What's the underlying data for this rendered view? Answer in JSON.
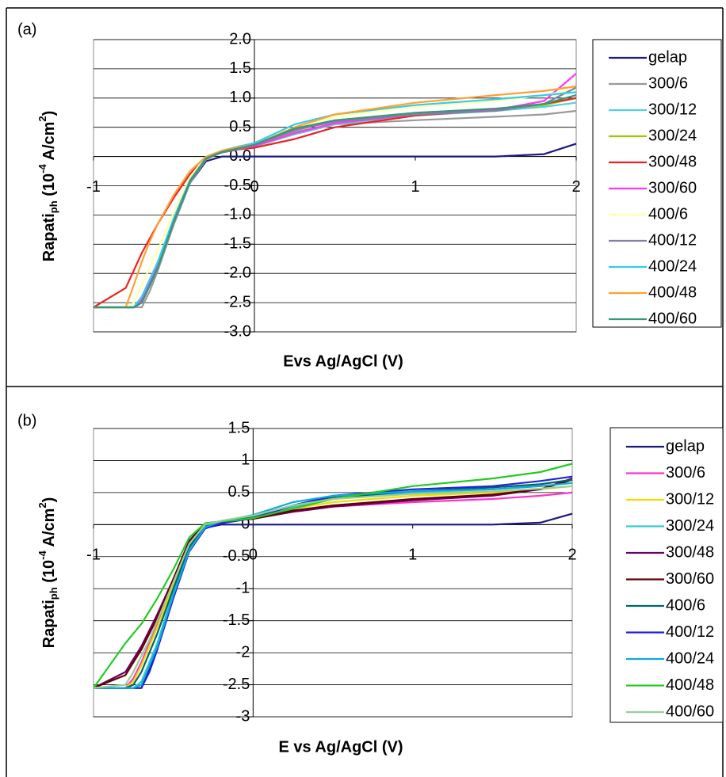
{
  "chart_data": [
    {
      "type": "line",
      "panel": "(a)",
      "xlabel": "Evs Ag/AgCl (V)",
      "ylabel": [
        "Rapati",
        "ph",
        " (10",
        "-4",
        " A/cm",
        "2",
        ")"
      ],
      "xlim": [
        -1,
        2
      ],
      "xticks": [
        -1,
        0,
        1,
        2
      ],
      "ylim": [
        -3,
        2
      ],
      "yticks": [
        {
          "value": -3,
          "label": "-3.0"
        },
        -2.5,
        {
          "value": -2,
          "label": "-2.0"
        },
        -1.5,
        {
          "value": -1,
          "label": "-1.0"
        },
        -0.5,
        {
          "value": 0,
          "label": "0.0"
        },
        0.5,
        {
          "value": 1,
          "label": "1.0"
        },
        1.5,
        {
          "value": 2,
          "label": "2.0"
        }
      ],
      "grid": true,
      "legend": "right",
      "x": [
        -1,
        -0.8,
        -0.75,
        -0.7,
        -0.65,
        -0.6,
        -0.5,
        -0.4,
        -0.3,
        -0.2,
        -0.1,
        0,
        0.25,
        0.5,
        1,
        1.5,
        1.8,
        2
      ],
      "series": [
        {
          "name": "gelap",
          "color": "#1a1a80",
          "values": [
            -2.58,
            -2.58,
            -2.58,
            -2.5,
            -2.2,
            -1.9,
            -1.15,
            -0.45,
            -0.08,
            0,
            0,
            0,
            0,
            0,
            0,
            0,
            0.04,
            0.22
          ]
        },
        {
          "name": "300/6",
          "color": "#999999",
          "values": [
            -2.58,
            -2.58,
            -2.58,
            -2.58,
            -2.3,
            -1.95,
            -1.15,
            -0.45,
            -0.05,
            0.08,
            0.13,
            0.2,
            0.42,
            0.55,
            0.62,
            0.68,
            0.72,
            0.78
          ]
        },
        {
          "name": "300/12",
          "color": "#55d0dd",
          "values": [
            -2.58,
            -2.58,
            -2.58,
            -2.4,
            -2.1,
            -1.8,
            -1.05,
            -0.4,
            -0.03,
            0.07,
            0.12,
            0.17,
            0.38,
            0.55,
            0.7,
            0.78,
            0.85,
            0.92
          ]
        },
        {
          "name": "300/24",
          "color": "#99cc00",
          "values": [
            -2.58,
            -2.58,
            -2.58,
            -2.45,
            -2.15,
            -1.85,
            -1.1,
            -0.42,
            -0.03,
            0.08,
            0.13,
            0.18,
            0.4,
            0.57,
            0.72,
            0.8,
            0.88,
            1.0
          ]
        },
        {
          "name": "300/48",
          "color": "#ee2222",
          "values": [
            -2.58,
            -2.25,
            -1.95,
            -1.65,
            -1.4,
            -1.15,
            -0.7,
            -0.3,
            0,
            0.07,
            0.12,
            0.15,
            0.3,
            0.5,
            0.7,
            0.8,
            0.9,
            1.0
          ]
        },
        {
          "name": "300/60",
          "color": "#ff33ff",
          "values": [
            -2.58,
            -2.58,
            -2.58,
            -2.45,
            -2.15,
            -1.85,
            -1.1,
            -0.42,
            -0.03,
            0.08,
            0.13,
            0.18,
            0.4,
            0.57,
            0.72,
            0.8,
            0.95,
            1.42
          ]
        },
        {
          "name": "400/6",
          "color": "#ffffaa",
          "values": [
            -2.58,
            -2.58,
            -2.5,
            -2.2,
            -1.9,
            -1.6,
            -0.95,
            -0.35,
            0,
            0.1,
            0.17,
            0.22,
            0.5,
            0.68,
            0.85,
            0.95,
            1.05,
            1.15
          ]
        },
        {
          "name": "400/12",
          "color": "#8080a0",
          "values": [
            -2.58,
            -2.58,
            -2.58,
            -2.5,
            -2.2,
            -1.9,
            -1.12,
            -0.43,
            -0.04,
            0.07,
            0.13,
            0.2,
            0.45,
            0.6,
            0.72,
            0.78,
            0.9,
            1.18
          ]
        },
        {
          "name": "400/24",
          "color": "#33ccee",
          "values": [
            -2.58,
            -2.58,
            -2.58,
            -2.4,
            -2.1,
            -1.8,
            -1.05,
            -0.4,
            -0.02,
            0.1,
            0.17,
            0.23,
            0.55,
            0.72,
            0.88,
            0.98,
            1.05,
            1.1
          ]
        },
        {
          "name": "400/48",
          "color": "#ffa030",
          "values": [
            -2.58,
            -2.58,
            -2.2,
            -1.8,
            -1.45,
            -1.15,
            -0.65,
            -0.25,
            0,
            0.1,
            0.16,
            0.2,
            0.5,
            0.72,
            0.92,
            1.05,
            1.12,
            1.2
          ]
        },
        {
          "name": "400/60",
          "color": "#339977",
          "values": [
            -2.58,
            -2.58,
            -2.58,
            -2.5,
            -2.2,
            -1.9,
            -1.1,
            -0.42,
            -0.03,
            0.08,
            0.14,
            0.2,
            0.48,
            0.62,
            0.75,
            0.82,
            0.9,
            1.05
          ]
        }
      ]
    },
    {
      "type": "line",
      "panel": "(b)",
      "xlabel": "E vs Ag/AgCl (V)",
      "ylabel": [
        "Rapati",
        "ph",
        " (10",
        "-4",
        " A/cm",
        "2",
        ")"
      ],
      "xlim": [
        -1,
        2
      ],
      "xticks": [
        -1,
        0,
        1,
        2
      ],
      "ylim": [
        -3,
        1.5
      ],
      "yticks": [
        -3,
        -2.5,
        -2,
        -1.5,
        -1,
        -0.5,
        0,
        0.5,
        1,
        1.5
      ],
      "grid": true,
      "legend": "right",
      "x": [
        -1,
        -0.8,
        -0.75,
        -0.7,
        -0.65,
        -0.6,
        -0.5,
        -0.4,
        -0.3,
        -0.2,
        -0.1,
        0,
        0.25,
        0.5,
        1,
        1.5,
        1.8,
        2
      ],
      "series": [
        {
          "name": "gelap",
          "color": "#1a1a80",
          "values": [
            -2.55,
            -2.55,
            -2.55,
            -2.55,
            -2.25,
            -1.9,
            -1.1,
            -0.4,
            -0.05,
            0,
            0,
            0,
            0,
            0,
            0,
            0,
            0.03,
            0.17
          ]
        },
        {
          "name": "300/6",
          "color": "#ff33cc",
          "values": [
            -2.55,
            -2.55,
            -2.4,
            -2.15,
            -1.85,
            -1.55,
            -0.9,
            -0.3,
            0.01,
            0.05,
            0.07,
            0.1,
            0.2,
            0.28,
            0.35,
            0.4,
            0.45,
            0.5
          ]
        },
        {
          "name": "300/12",
          "color": "#eedd00",
          "values": [
            -2.55,
            -2.55,
            -2.45,
            -2.2,
            -1.9,
            -1.6,
            -0.95,
            -0.3,
            0,
            0.05,
            0.08,
            0.12,
            0.25,
            0.35,
            0.45,
            0.5,
            0.55,
            0.6
          ]
        },
        {
          "name": "300/24",
          "color": "#33cccc",
          "values": [
            -2.55,
            -2.55,
            -2.55,
            -2.45,
            -2.15,
            -1.85,
            -1.05,
            -0.38,
            -0.03,
            0.04,
            0.08,
            0.12,
            0.28,
            0.4,
            0.5,
            0.55,
            0.6,
            0.65
          ]
        },
        {
          "name": "300/48",
          "color": "#660066",
          "values": [
            -2.55,
            -2.3,
            -2.1,
            -1.9,
            -1.65,
            -1.4,
            -0.85,
            -0.25,
            0.02,
            0.05,
            0.07,
            0.09,
            0.2,
            0.28,
            0.38,
            0.45,
            0.55,
            0.72
          ]
        },
        {
          "name": "300/60",
          "color": "#660000",
          "values": [
            -2.55,
            -2.35,
            -2.15,
            -1.95,
            -1.7,
            -1.45,
            -0.85,
            -0.27,
            0.01,
            0.05,
            0.07,
            0.09,
            0.22,
            0.3,
            0.4,
            0.47,
            0.55,
            0.7
          ]
        },
        {
          "name": "400/6",
          "color": "#006666",
          "values": [
            -2.55,
            -2.55,
            -2.5,
            -2.3,
            -2.0,
            -1.7,
            -1.0,
            -0.35,
            -0.02,
            0.05,
            0.09,
            0.13,
            0.3,
            0.42,
            0.52,
            0.58,
            0.63,
            0.7
          ]
        },
        {
          "name": "400/12",
          "color": "#2222dd",
          "values": [
            -2.55,
            -2.55,
            -2.55,
            -2.55,
            -2.3,
            -1.95,
            -1.15,
            -0.42,
            -0.06,
            0.02,
            0.06,
            0.1,
            0.3,
            0.45,
            0.55,
            0.6,
            0.68,
            0.75
          ]
        },
        {
          "name": "400/24",
          "color": "#11aadd",
          "values": [
            -2.55,
            -2.55,
            -2.55,
            -2.5,
            -2.2,
            -1.9,
            -1.1,
            -0.4,
            -0.04,
            0.05,
            0.1,
            0.15,
            0.35,
            0.45,
            0.52,
            0.55,
            0.6,
            0.65
          ]
        },
        {
          "name": "400/48",
          "color": "#22cc22",
          "values": [
            -2.55,
            -1.85,
            -1.7,
            -1.55,
            -1.35,
            -1.15,
            -0.7,
            -0.2,
            0.02,
            0.05,
            0.07,
            0.1,
            0.25,
            0.4,
            0.6,
            0.72,
            0.82,
            0.95
          ]
        },
        {
          "name": "400/60",
          "color": "#99cc99",
          "values": [
            -2.55,
            -2.5,
            -2.3,
            -2.05,
            -1.8,
            -1.5,
            -0.9,
            -0.3,
            0,
            0.06,
            0.1,
            0.14,
            0.3,
            0.4,
            0.48,
            0.52,
            0.56,
            0.6
          ]
        }
      ]
    }
  ]
}
